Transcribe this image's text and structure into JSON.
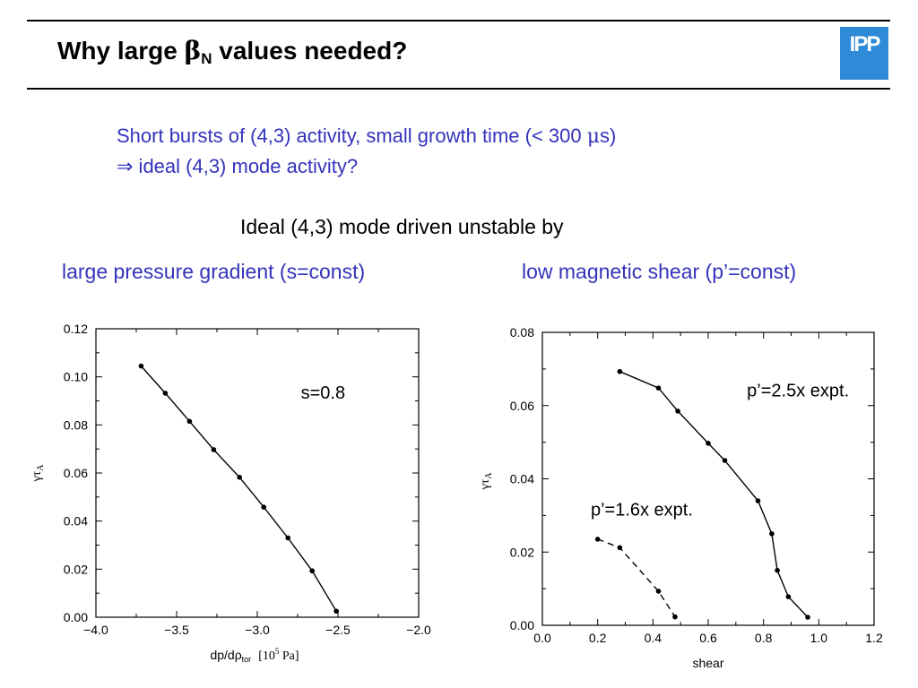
{
  "slide": {
    "title_prefix": "Why large ",
    "title_greek": "β",
    "title_sub": "N",
    "title_suffix": " values needed?",
    "logo_text": "IPP",
    "line1_prefix": "Short bursts of (4,3) activity, small growth time (< 300 ",
    "line1_greek": "μ",
    "line1_suffix": "s)",
    "line2_arrow": "⇒",
    "line2_text": " ideal (4,3) mode activity?",
    "ideal_heading": "Ideal (4,3) mode driven unstable by",
    "left_subheading": "large pressure gradient (s=const)",
    "right_subheading": "low magnetic shear (p’=const)"
  },
  "chart_data": [
    {
      "type": "line",
      "xlabel_main": "dp/dρ",
      "xlabel_sub": "tor",
      "xlabel_unit_pre": "[10",
      "xlabel_unit_exp": "5",
      "xlabel_unit_post": " Pa]",
      "ylabel_main": "γτ",
      "ylabel_sub": "A",
      "xlim": [
        -4.0,
        -2.0
      ],
      "ylim": [
        0.0,
        0.12
      ],
      "xticks": [
        -4.0,
        -3.5,
        -3.0,
        -2.5,
        -2.0
      ],
      "xtick_labels": [
        "−4.0",
        "−3.5",
        "−3.0",
        "−2.5",
        "−2.0"
      ],
      "yticks": [
        0.0,
        0.02,
        0.04,
        0.06,
        0.08,
        0.1,
        0.12
      ],
      "ytick_labels": [
        "0.00",
        "0.02",
        "0.04",
        "0.06",
        "0.08",
        "0.10",
        "0.12"
      ],
      "annotations": [
        {
          "text": "s=0.8",
          "x": -2.73,
          "y": 0.091
        }
      ],
      "series": [
        {
          "style": "solid",
          "x": [
            -3.72,
            -3.57,
            -3.42,
            -3.27,
            -3.11,
            -2.96,
            -2.81,
            -2.66,
            -2.51
          ],
          "y": [
            0.1045,
            0.0932,
            0.0815,
            0.0697,
            0.0582,
            0.0458,
            0.033,
            0.0193,
            0.0025
          ]
        }
      ]
    },
    {
      "type": "line",
      "xlabel_main": "shear",
      "ylabel_main": "γτ",
      "ylabel_sub": "A",
      "xlim": [
        0.0,
        1.2
      ],
      "ylim": [
        0.0,
        0.08
      ],
      "xticks": [
        0.0,
        0.2,
        0.4,
        0.6,
        0.8,
        1.0,
        1.2
      ],
      "xtick_labels": [
        "0.0",
        "0.2",
        "0.4",
        "0.6",
        "0.8",
        "1.0",
        "1.2"
      ],
      "yticks": [
        0.0,
        0.02,
        0.04,
        0.06,
        0.08
      ],
      "ytick_labels": [
        "0.00",
        "0.02",
        "0.04",
        "0.06",
        "0.08"
      ],
      "annotations": [
        {
          "text": "p’=2.5x expt.",
          "x": 0.74,
          "y": 0.0625
        },
        {
          "text": "p’=1.6x expt.",
          "x": 0.175,
          "y": 0.03
        }
      ],
      "series": [
        {
          "style": "solid",
          "x": [
            0.28,
            0.42,
            0.49,
            0.6,
            0.66,
            0.78,
            0.83,
            0.85,
            0.89,
            0.96
          ],
          "y": [
            0.0693,
            0.0648,
            0.0585,
            0.0497,
            0.045,
            0.034,
            0.025,
            0.015,
            0.0078,
            0.0022
          ]
        },
        {
          "style": "dashed",
          "x": [
            0.2,
            0.28,
            0.42,
            0.48
          ],
          "y": [
            0.0235,
            0.0212,
            0.0093,
            0.0023
          ]
        }
      ]
    }
  ]
}
